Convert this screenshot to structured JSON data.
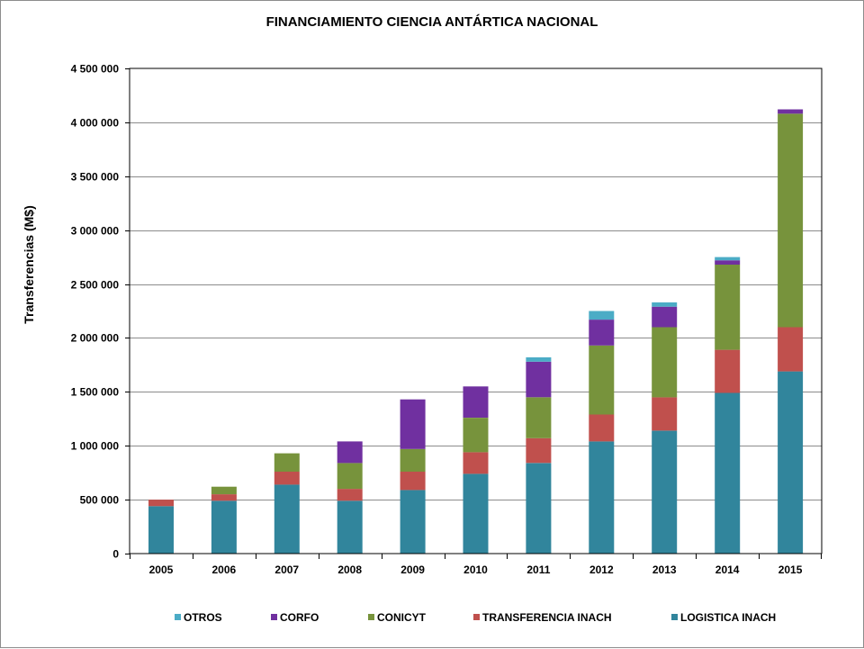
{
  "chart_data": {
    "type": "bar",
    "stacked": true,
    "title": "FINANCIAMIENTO CIENCIA ANTÁRTICA NACIONAL",
    "xlabel": "",
    "ylabel": "Transferencias (M$)",
    "ylim": [
      0,
      4500000
    ],
    "yticks": [
      0,
      500000,
      1000000,
      1500000,
      2000000,
      2500000,
      3000000,
      3500000,
      4000000,
      4500000
    ],
    "ytick_labels": [
      "0",
      "500 000",
      "1 000 000",
      "1 500 000",
      "2 000 000",
      "2 500 000",
      "3 000 000",
      "3 500 000",
      "4 000 000",
      "4 500 000"
    ],
    "grid": true,
    "legend_position": "bottom",
    "categories": [
      "2005",
      "2006",
      "2007",
      "2008",
      "2009",
      "2010",
      "2011",
      "2012",
      "2013",
      "2014",
      "2015"
    ],
    "series": [
      {
        "name": "LOGISTICA INACH",
        "color": "#31859c",
        "values": [
          440000,
          490000,
          640000,
          490000,
          590000,
          740000,
          840000,
          1040000,
          1140000,
          1490000,
          1690000
        ]
      },
      {
        "name": "TRANSFERENCIA INACH",
        "color": "#c0504d",
        "values": [
          60000,
          60000,
          120000,
          110000,
          170000,
          200000,
          230000,
          250000,
          310000,
          400000,
          410000
        ]
      },
      {
        "name": "CONICYT",
        "color": "#77933c",
        "values": [
          0,
          70000,
          170000,
          240000,
          210000,
          320000,
          380000,
          640000,
          650000,
          790000,
          1980000
        ]
      },
      {
        "name": "CORFO",
        "color": "#7030a0",
        "values": [
          0,
          0,
          0,
          200000,
          460000,
          290000,
          330000,
          240000,
          190000,
          40000,
          40000
        ]
      },
      {
        "name": "OTROS",
        "color": "#4bacc6",
        "values": [
          0,
          0,
          0,
          0,
          0,
          0,
          40000,
          80000,
          40000,
          30000,
          0
        ]
      }
    ],
    "legend_order": [
      "OTROS",
      "CORFO",
      "CONICYT",
      "TRANSFERENCIA INACH",
      "LOGISTICA INACH"
    ]
  }
}
